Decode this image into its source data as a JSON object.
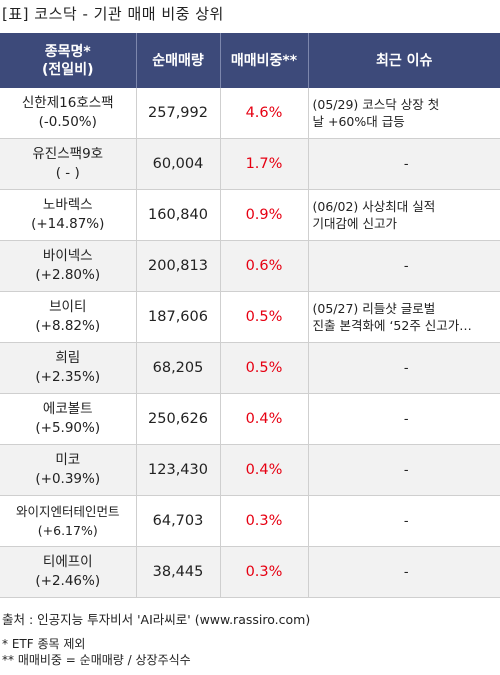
{
  "title": "[표] 코스닥 - 기관 매매 비중 상위",
  "headers": {
    "name_line1": "종목명*",
    "name_line2": "(전일비)",
    "volume": "순매매량",
    "ratio": "매매비중**",
    "issue": "최근 이슈"
  },
  "rows": [
    {
      "name": "신한제16호스팩",
      "change": "(-0.50%)",
      "volume": "257,992",
      "ratio": "4.6%",
      "issue_line1": "(05/29) 코스닥 상장 첫",
      "issue_line2": "날 +60%대 급등"
    },
    {
      "name": "유진스팩9호",
      "change": "( - )",
      "volume": "60,004",
      "ratio": "1.7%",
      "issue_line1": "-",
      "issue_line2": ""
    },
    {
      "name": "노바렉스",
      "change": "(+14.87%)",
      "volume": "160,840",
      "ratio": "0.9%",
      "issue_line1": "(06/02) 사상최대 실적",
      "issue_line2": "기대감에 신고가"
    },
    {
      "name": "바이넥스",
      "change": "(+2.80%)",
      "volume": "200,813",
      "ratio": "0.6%",
      "issue_line1": "-",
      "issue_line2": ""
    },
    {
      "name": "브이티",
      "change": "(+8.82%)",
      "volume": "187,606",
      "ratio": "0.5%",
      "issue_line1": "(05/27) 리들샷 글로벌",
      "issue_line2": "진출 본격화에 ‘52주 신고가…"
    },
    {
      "name": "희림",
      "change": "(+2.35%)",
      "volume": "68,205",
      "ratio": "0.5%",
      "issue_line1": "-",
      "issue_line2": ""
    },
    {
      "name": "에코볼트",
      "change": "(+5.90%)",
      "volume": "250,626",
      "ratio": "0.4%",
      "issue_line1": "-",
      "issue_line2": ""
    },
    {
      "name": "미코",
      "change": "(+0.39%)",
      "volume": "123,430",
      "ratio": "0.4%",
      "issue_line1": "-",
      "issue_line2": ""
    },
    {
      "name": "와이지엔터테인먼트",
      "change": "(+6.17%)",
      "volume": "64,703",
      "ratio": "0.3%",
      "issue_line1": "-",
      "issue_line2": ""
    },
    {
      "name": "티에프이",
      "change": "(+2.46%)",
      "volume": "38,445",
      "ratio": "0.3%",
      "issue_line1": "-",
      "issue_line2": ""
    }
  ],
  "footer": {
    "source": "출처 : 인공지능 투자비서 'AI라씨로' (www.rassiro.com)",
    "note1": "* ETF 종목 제외",
    "note2": "** 매매비중 = 순매매량 / 상장주식수"
  },
  "colors": {
    "header_bg": "#3d4a7a",
    "ratio_text": "#e60012",
    "row_alt_bg": "#f2f2f2"
  }
}
